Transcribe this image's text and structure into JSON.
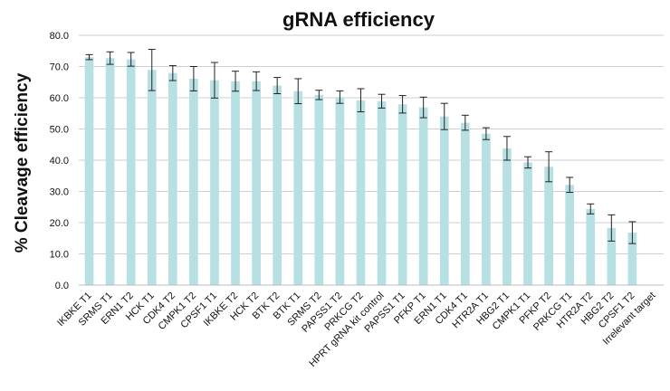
{
  "chart_data": {
    "type": "bar",
    "title": "gRNA efficiency",
    "ylabel": "% Cleavage efficiency",
    "xlabel": "",
    "ylim": [
      0,
      80
    ],
    "ytick_step": 10,
    "ytick_labels": [
      "0.0",
      "10.0",
      "20.0",
      "30.0",
      "40.0",
      "50.0",
      "60.0",
      "70.0",
      "80.0"
    ],
    "grid": true,
    "bar_color": "#b7e0e3",
    "categories": [
      "IKBKE T1",
      "SRMS T1",
      "ERN1 T2",
      "HCK T1",
      "CDK4 T2",
      "CMPK1 T2",
      "CPSF1 T1",
      "IKBKE T2",
      "HCK T2",
      "BTK T2",
      "BTK T1",
      "SRMS T2",
      "PAPSS1 T2",
      "PRKCG T2",
      "HPRT gRNA kit control",
      "PAPSS1 T1",
      "PFKP T1",
      "ERN1 T1",
      "CDK4 T1",
      "HTR2A T1",
      "HBG2 T1",
      "CMPK1 T1",
      "PFKP T2",
      "PRKCG T1",
      "HTR2A T2",
      "HBG2 T2",
      "CPSF1 T2",
      "Irrelevant target"
    ],
    "values": [
      73.0,
      72.7,
      72.3,
      68.9,
      67.9,
      66.1,
      65.6,
      65.3,
      65.3,
      63.9,
      62.1,
      60.9,
      60.2,
      59.2,
      58.9,
      57.9,
      56.9,
      54.0,
      52.0,
      48.5,
      43.8,
      39.3,
      37.9,
      32.1,
      24.4,
      18.3,
      16.8,
      0
    ],
    "errors": [
      0.8,
      2.0,
      2.2,
      6.6,
      2.4,
      3.9,
      5.7,
      3.2,
      3.0,
      2.6,
      4.0,
      1.5,
      2.0,
      3.7,
      2.2,
      2.8,
      3.3,
      4.2,
      2.4,
      1.9,
      3.8,
      1.8,
      4.8,
      2.4,
      1.6,
      4.2,
      3.5,
      0
    ]
  }
}
